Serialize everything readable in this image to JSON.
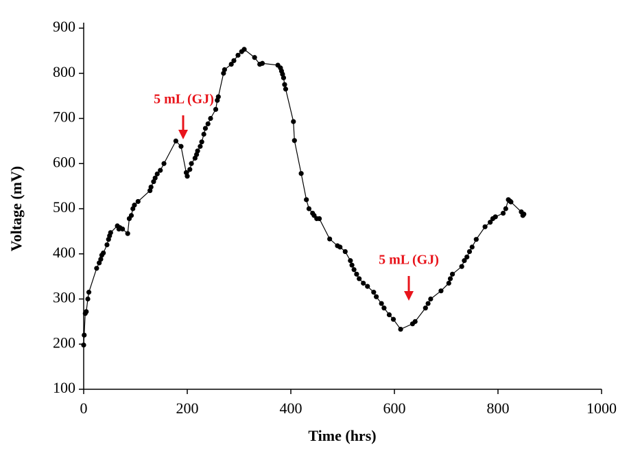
{
  "chart_data": {
    "type": "line",
    "x_label": "Time (hrs)",
    "y_label": "Voltage (mV)",
    "annotations": [
      "5 mL (GJ)",
      "5 mL (GJ)"
    ],
    "xlim": [
      0,
      1000
    ],
    "xticks": [
      0,
      200,
      400,
      600,
      800,
      1000
    ],
    "ylim": [
      100,
      900
    ],
    "yticks": [
      100,
      200,
      300,
      400,
      500,
      600,
      700,
      800,
      900
    ],
    "series": [
      {
        "color": "#000000",
        "x": [
          0,
          1,
          3,
          5,
          8,
          10,
          25,
          30,
          33,
          35,
          38,
          45,
          48,
          50,
          52,
          65,
          68,
          70,
          75,
          85,
          88,
          92,
          95,
          98,
          105,
          128,
          130,
          135,
          138,
          142,
          148,
          155,
          178,
          188,
          198,
          200,
          205,
          208,
          215,
          218,
          220,
          225,
          228,
          232,
          235,
          240,
          245,
          255,
          258,
          260,
          270,
          272,
          285,
          290,
          298,
          305,
          310,
          330,
          340,
          345,
          375,
          380,
          382,
          384,
          386,
          388,
          390,
          405,
          407,
          420,
          430,
          435,
          442,
          445,
          450,
          455,
          475,
          490,
          495,
          505,
          515,
          518,
          522,
          527,
          532,
          540,
          548,
          560,
          565,
          575,
          580,
          590,
          598,
          612,
          635,
          640,
          660,
          665,
          670,
          690,
          705,
          708,
          712,
          730,
          735,
          740,
          745,
          750,
          758,
          775,
          785,
          790,
          795,
          810,
          815,
          820,
          823,
          825,
          845,
          848,
          850
        ],
        "values": [
          198,
          220,
          268,
          272,
          300,
          315,
          368,
          380,
          388,
          397,
          402,
          420,
          432,
          440,
          447,
          462,
          455,
          458,
          455,
          445,
          478,
          485,
          500,
          508,
          516,
          540,
          548,
          560,
          568,
          577,
          585,
          600,
          650,
          638,
          580,
          572,
          587,
          600,
          612,
          620,
          628,
          638,
          648,
          665,
          678,
          688,
          700,
          720,
          740,
          748,
          800,
          808,
          820,
          828,
          840,
          848,
          853,
          835,
          820,
          822,
          818,
          812,
          805,
          798,
          790,
          775,
          765,
          693,
          651,
          578,
          520,
          500,
          490,
          485,
          478,
          478,
          433,
          418,
          415,
          405,
          385,
          375,
          365,
          355,
          345,
          335,
          328,
          315,
          305,
          290,
          280,
          265,
          255,
          233,
          245,
          250,
          280,
          290,
          300,
          318,
          335,
          345,
          355,
          372,
          385,
          393,
          405,
          415,
          432,
          460,
          470,
          478,
          482,
          490,
          500,
          520,
          517,
          515,
          493,
          485,
          488
        ]
      }
    ]
  }
}
